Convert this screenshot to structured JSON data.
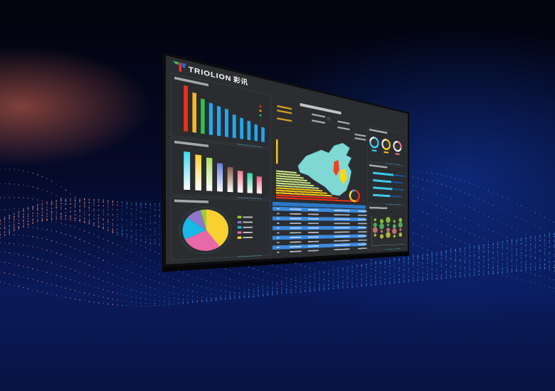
{
  "brand": {
    "name": "TRIOLION",
    "name_cn": "彩讯"
  },
  "colors": {
    "screen_bg": "#2b2d30",
    "accent_cyan": "#38c8ec",
    "accent_red": "#f03018",
    "accent_yellow": "#f8c818",
    "map": "#7fd8d4"
  },
  "chart_data": [
    {
      "type": "bar",
      "values": [
        100,
        88,
        78,
        72,
        68,
        65,
        55,
        50,
        46,
        40,
        36
      ],
      "colors": [
        "#f03018",
        "#f8b818",
        "#28c850",
        "#20a8f0",
        "#20a8f0",
        "#20a8f0",
        "#20a8f0",
        "#20a8f0",
        "#20a8f0",
        "#20a8f0",
        "#20a8f0"
      ],
      "legend": "top-right"
    },
    {
      "type": "bar",
      "values": [
        100,
        95,
        90,
        78,
        70,
        62,
        58,
        50
      ],
      "colors": [
        "#40d8f0",
        "#f8d030",
        "#a8e060",
        "#6080e0",
        "#8a5a40",
        "#f07890",
        "#30d0a0",
        "#f06080"
      ]
    },
    {
      "type": "pie",
      "values": [
        40,
        28,
        17,
        11,
        4
      ],
      "colors": [
        "#f8d030",
        "#e868a8",
        "#18b8e8",
        "#9078c8",
        "#98d030"
      ],
      "legend": "right"
    },
    {
      "type": "bar",
      "orientation": "horizontal",
      "values": [
        22,
        26,
        30,
        34,
        38,
        42,
        48,
        52,
        58,
        64,
        72,
        100
      ]
    },
    {
      "type": "pie",
      "variant": "donut",
      "values": [
        45,
        25,
        20,
        10
      ],
      "colors": [
        "#f03018",
        "#f8b818",
        "#f8e040",
        "#30b0e0"
      ]
    },
    {
      "type": "table",
      "rows": 10,
      "columns": 5
    },
    {
      "type": "pie",
      "variant": "gauge",
      "values": [
        75,
        60,
        30
      ],
      "colors": [
        "#38d0f0",
        "#f8c818",
        "#f07888"
      ]
    },
    {
      "type": "bar",
      "orientation": "horizontal",
      "values": [
        70,
        62,
        66,
        58
      ]
    },
    {
      "type": "scatter",
      "variant": "bubble",
      "series_count": 5
    }
  ]
}
